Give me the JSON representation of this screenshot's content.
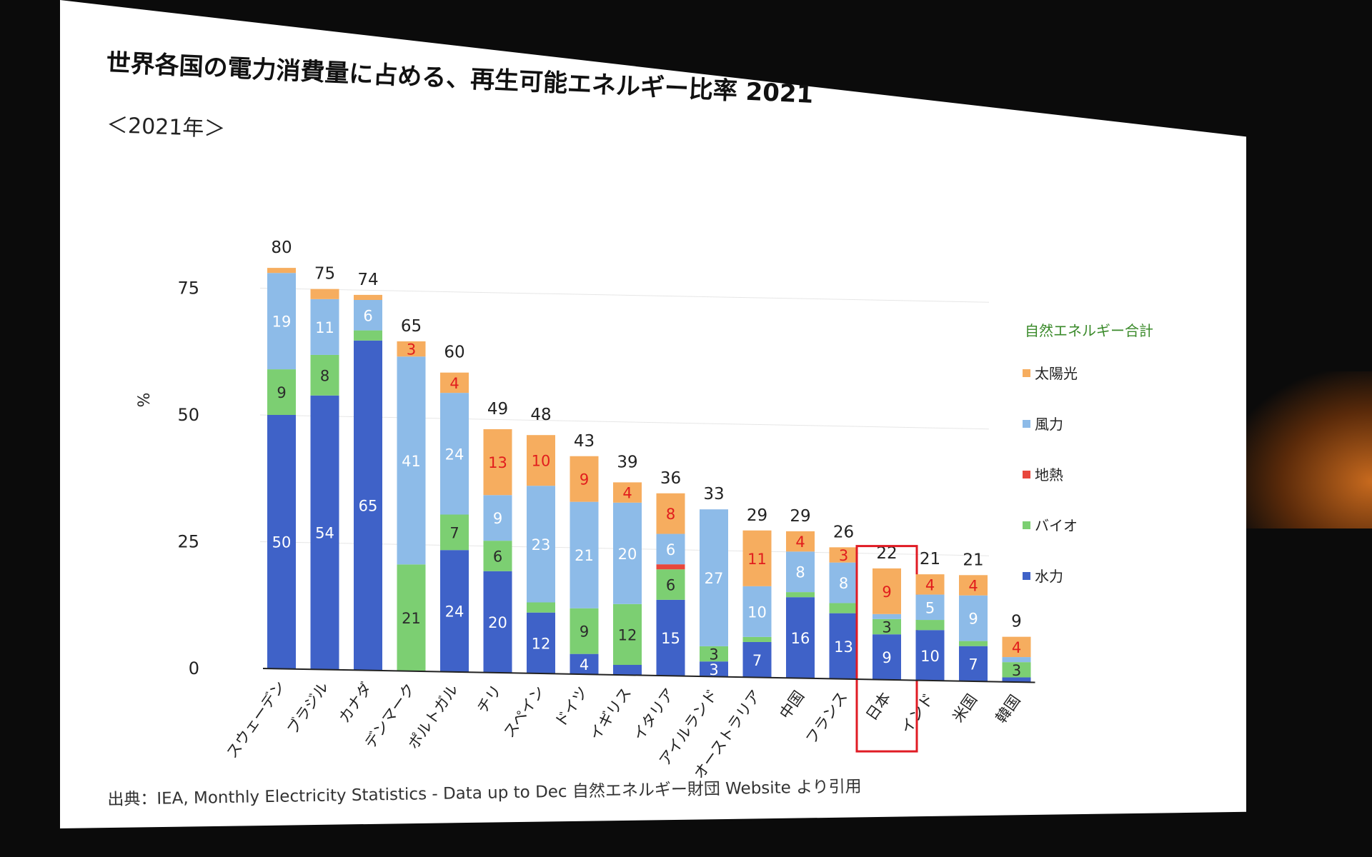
{
  "slide": {
    "title": "世界各国の電力消費量に占める、再生可能エネルギー比率 2021",
    "subtitle": "＜2021年＞",
    "source": "出典：IEA, Monthly Electricity Statistics - Data up to Dec 自然エネルギー財団 Website より引用"
  },
  "colors": {
    "solar": "#f6ad5f",
    "wind": "#8dbbe8",
    "geothermal": "#e8473c",
    "bio": "#7ccf72",
    "hydro": "#3f62c8",
    "highlight": "#e01b24"
  },
  "chart_data": {
    "type": "bar",
    "stacked": true,
    "ylabel": "%",
    "ylim": [
      0,
      80
    ],
    "yticks": [
      0,
      25,
      50,
      75
    ],
    "legend_title": "自然エネルギー合計",
    "legend_position": "right",
    "categories": [
      "スウェーデン",
      "ブラジル",
      "カナダ",
      "デンマーク",
      "ポルトガル",
      "チリ",
      "スペイン",
      "ドイツ",
      "イギリス",
      "イタリア",
      "アイルランド",
      "オーストラリア",
      "中国",
      "フランス",
      "日本",
      "インド",
      "米国",
      "韓国"
    ],
    "totals": [
      80,
      75,
      74,
      65,
      60,
      49,
      48,
      43,
      39,
      36,
      33,
      29,
      29,
      26,
      22,
      21,
      21,
      9
    ],
    "series": [
      {
        "name": "水力",
        "key": "hydro",
        "values": [
          50,
          54,
          65,
          0,
          24,
          20,
          12,
          4,
          2,
          15,
          3,
          7,
          16,
          13,
          9,
          10,
          7,
          1
        ]
      },
      {
        "name": "バイオ",
        "key": "bio",
        "values": [
          9,
          8,
          2,
          21,
          7,
          6,
          2,
          9,
          12,
          6,
          3,
          1,
          1,
          2,
          3,
          2,
          1,
          3
        ]
      },
      {
        "name": "地熱",
        "key": "geothermal",
        "values": [
          0,
          0,
          0,
          0,
          0,
          0,
          0,
          0,
          0,
          1,
          0,
          0,
          0,
          0,
          0,
          0,
          0,
          0
        ]
      },
      {
        "name": "風力",
        "key": "wind",
        "values": [
          19,
          11,
          6,
          41,
          24,
          9,
          23,
          21,
          20,
          6,
          27,
          10,
          8,
          8,
          1,
          5,
          9,
          1
        ]
      },
      {
        "name": "太陽光",
        "key": "solar",
        "values": [
          1,
          2,
          1,
          3,
          4,
          13,
          10,
          9,
          4,
          8,
          0,
          11,
          4,
          3,
          9,
          4,
          4,
          4
        ]
      }
    ],
    "segment_labels": [
      {
        "hydro": "50",
        "bio": "9",
        "wind": "19"
      },
      {
        "hydro": "54",
        "bio": "8",
        "wind": "11"
      },
      {
        "hydro": "65",
        "wind": "6"
      },
      {
        "bio": "21",
        "wind": "41",
        "solar": "3"
      },
      {
        "hydro": "24",
        "bio": "7",
        "wind": "24",
        "solar": "4"
      },
      {
        "hydro": "20",
        "bio": "6",
        "wind": "9",
        "solar": "13"
      },
      {
        "hydro": "12",
        "wind": "23",
        "solar": "10"
      },
      {
        "hydro": "4",
        "bio": "9",
        "wind": "21",
        "solar": "9"
      },
      {
        "bio": "12",
        "wind": "20",
        "solar": "4"
      },
      {
        "hydro": "15",
        "bio": "6",
        "wind": "6",
        "solar": "8"
      },
      {
        "hydro": "3",
        "bio": "3",
        "wind": "27"
      },
      {
        "hydro": "7",
        "wind": "10",
        "solar": "11"
      },
      {
        "hydro": "16",
        "wind": "8",
        "solar": "4"
      },
      {
        "hydro": "13",
        "wind": "8",
        "solar": "3"
      },
      {
        "hydro": "9",
        "bio": "3",
        "solar": "9"
      },
      {
        "hydro": "10",
        "wind": "5",
        "solar": "4"
      },
      {
        "hydro": "7",
        "wind": "9",
        "solar": "4"
      },
      {
        "bio": "3",
        "solar": "4"
      }
    ],
    "legend_order": [
      "solar",
      "wind",
      "geothermal",
      "bio",
      "hydro"
    ],
    "highlighted_category": "日本"
  }
}
